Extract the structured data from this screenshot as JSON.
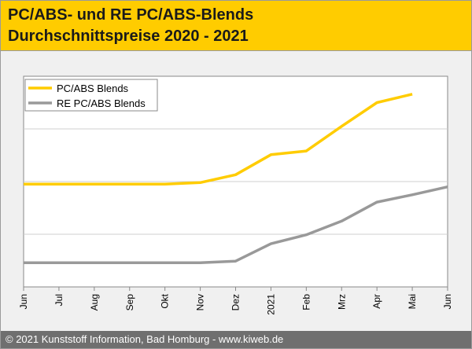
{
  "header": {
    "title_line1": "PC/ABS- und RE PC/ABS-Blends",
    "title_line2": "Durchschnittspreise 2020 - 2021"
  },
  "footer": {
    "text": "© 2021 Kunststoff Information, Bad Homburg - www.kiweb.de"
  },
  "colors": {
    "header_bg": "#ffcc00",
    "series1": "#ffcc00",
    "series2": "#999999",
    "footer_bg": "#6f6f6f"
  },
  "chart_data": {
    "type": "line",
    "title": "",
    "xlabel": "",
    "ylabel": "",
    "categories": [
      "Jun",
      "Jul",
      "Aug",
      "Sep",
      "Okt",
      "Nov",
      "Dez",
      "2021",
      "Feb",
      "Mrz",
      "Apr",
      "Mai",
      "Jun"
    ],
    "ylim": [
      0,
      4
    ],
    "grid": true,
    "legend_position": "top-left",
    "series": [
      {
        "name": "PC/ABS Blends",
        "color": "#ffcc00",
        "values": [
          1.95,
          1.95,
          1.95,
          1.95,
          1.95,
          1.98,
          2.13,
          2.51,
          2.58,
          3.05,
          3.5,
          3.66,
          null
        ]
      },
      {
        "name": "RE PC/ABS Blends",
        "color": "#999999",
        "values": [
          0.46,
          0.46,
          0.46,
          0.46,
          0.46,
          0.46,
          0.49,
          0.82,
          0.99,
          1.25,
          1.61,
          1.75,
          1.9
        ]
      }
    ]
  }
}
